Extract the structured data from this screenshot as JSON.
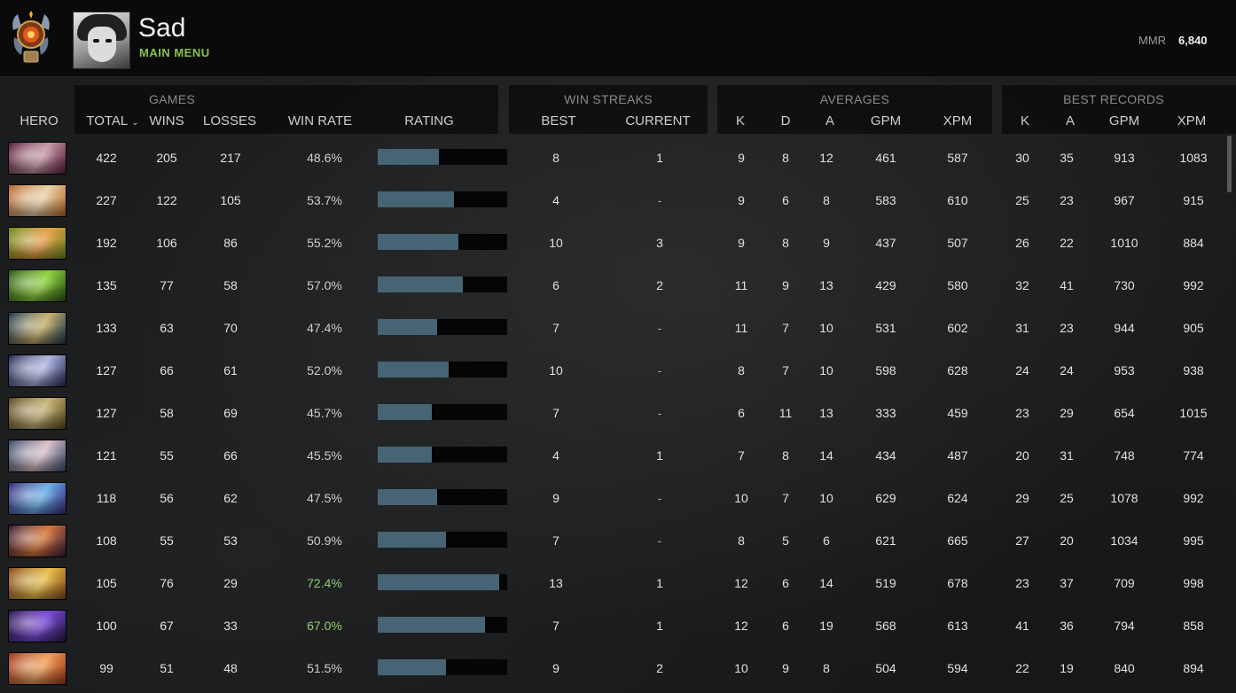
{
  "header": {
    "player_name": "Sad",
    "main_menu_label": "MAIN MENU",
    "mmr_label": "MMR",
    "mmr_value": "6,840",
    "medal_icon": "rank-medal-icon"
  },
  "groups": {
    "games": "GAMES",
    "win_streaks": "WIN STREAKS",
    "averages": "AVERAGES",
    "best_records": "BEST RECORDS"
  },
  "columns": {
    "hero": "HERO",
    "total": "TOTAL",
    "wins": "WINS",
    "losses": "LOSSES",
    "win_rate": "WIN RATE",
    "rating": "RATING",
    "streak_best": "BEST",
    "streak_current": "CURRENT",
    "avg_k": "K",
    "avg_d": "D",
    "avg_a": "A",
    "avg_gpm": "GPM",
    "avg_xpm": "XPM",
    "best_k": "K",
    "best_a": "A",
    "best_gpm": "GPM",
    "best_xpm": "XPM"
  },
  "colors": {
    "accent_green": "#83c24e",
    "rating_bar": "#466474",
    "good_winrate": "#8fce6e"
  },
  "rows": [
    {
      "hero_colors": [
        "#5a1e3c",
        "#c89aa8"
      ],
      "total": "422",
      "wins": "205",
      "losses": "217",
      "win_rate": "48.6%",
      "rating": 0.47,
      "best": "8",
      "current": "1",
      "k": "9",
      "d": "8",
      "a": "12",
      "gpm": "461",
      "xpm": "587",
      "bk": "30",
      "ba": "35",
      "bgpm": "913",
      "bxpm": "1083"
    },
    {
      "hero_colors": [
        "#b8672a",
        "#e8d2a8"
      ],
      "total": "227",
      "wins": "122",
      "losses": "105",
      "win_rate": "53.7%",
      "rating": 0.59,
      "best": "4",
      "current": "-",
      "k": "9",
      "d": "6",
      "a": "8",
      "gpm": "583",
      "xpm": "610",
      "bk": "25",
      "ba": "23",
      "bgpm": "967",
      "bxpm": "915"
    },
    {
      "hero_colors": [
        "#6a8a1c",
        "#e8a04a"
      ],
      "total": "192",
      "wins": "106",
      "losses": "86",
      "win_rate": "55.2%",
      "rating": 0.62,
      "best": "10",
      "current": "3",
      "k": "9",
      "d": "8",
      "a": "9",
      "gpm": "437",
      "xpm": "507",
      "bk": "26",
      "ba": "22",
      "bgpm": "1010",
      "bxpm": "884"
    },
    {
      "hero_colors": [
        "#2e5a18",
        "#8ed23a"
      ],
      "total": "135",
      "wins": "77",
      "losses": "58",
      "win_rate": "57.0%",
      "rating": 0.66,
      "best": "6",
      "current": "2",
      "k": "11",
      "d": "9",
      "a": "13",
      "gpm": "429",
      "xpm": "580",
      "bk": "32",
      "ba": "41",
      "bgpm": "730",
      "bxpm": "992"
    },
    {
      "hero_colors": [
        "#1e3a52",
        "#c8b06a"
      ],
      "total": "133",
      "wins": "63",
      "losses": "70",
      "win_rate": "47.4%",
      "rating": 0.46,
      "best": "7",
      "current": "-",
      "k": "11",
      "d": "7",
      "a": "10",
      "gpm": "531",
      "xpm": "602",
      "bk": "31",
      "ba": "23",
      "bgpm": "944",
      "bxpm": "905"
    },
    {
      "hero_colors": [
        "#2a2a5a",
        "#b0b8e0"
      ],
      "total": "127",
      "wins": "66",
      "losses": "61",
      "win_rate": "52.0%",
      "rating": 0.55,
      "best": "10",
      "current": "-",
      "k": "8",
      "d": "7",
      "a": "10",
      "gpm": "598",
      "xpm": "628",
      "bk": "24",
      "ba": "24",
      "bgpm": "953",
      "bxpm": "938"
    },
    {
      "hero_colors": [
        "#5a4a1e",
        "#c8b478"
      ],
      "total": "127",
      "wins": "58",
      "losses": "69",
      "win_rate": "45.7%",
      "rating": 0.42,
      "best": "7",
      "current": "-",
      "k": "6",
      "d": "11",
      "a": "13",
      "gpm": "333",
      "xpm": "459",
      "bk": "23",
      "ba": "29",
      "bgpm": "654",
      "bxpm": "1015"
    },
    {
      "hero_colors": [
        "#3a4a6a",
        "#d8c0c8"
      ],
      "total": "121",
      "wins": "55",
      "losses": "66",
      "win_rate": "45.5%",
      "rating": 0.42,
      "best": "4",
      "current": "1",
      "k": "7",
      "d": "8",
      "a": "14",
      "gpm": "434",
      "xpm": "487",
      "bk": "20",
      "ba": "31",
      "bgpm": "748",
      "bxpm": "774"
    },
    {
      "hero_colors": [
        "#3a2a7a",
        "#6ab0e8"
      ],
      "total": "118",
      "wins": "56",
      "losses": "62",
      "win_rate": "47.5%",
      "rating": 0.46,
      "best": "9",
      "current": "-",
      "k": "10",
      "d": "7",
      "a": "10",
      "gpm": "629",
      "xpm": "624",
      "bk": "29",
      "ba": "25",
      "bgpm": "1078",
      "bxpm": "992"
    },
    {
      "hero_colors": [
        "#3a1e3a",
        "#d8783a"
      ],
      "total": "108",
      "wins": "55",
      "losses": "53",
      "win_rate": "50.9%",
      "rating": 0.53,
      "best": "7",
      "current": "-",
      "k": "8",
      "d": "5",
      "a": "6",
      "gpm": "621",
      "xpm": "665",
      "bk": "27",
      "ba": "20",
      "bgpm": "1034",
      "bxpm": "995"
    },
    {
      "hero_colors": [
        "#8a4a1a",
        "#e8c04a"
      ],
      "total": "105",
      "wins": "76",
      "losses": "29",
      "win_rate": "72.4%",
      "rating": 0.94,
      "best": "13",
      "current": "1",
      "k": "12",
      "d": "6",
      "a": "14",
      "gpm": "519",
      "xpm": "678",
      "bk": "23",
      "ba": "37",
      "bgpm": "709",
      "bxpm": "998"
    },
    {
      "hero_colors": [
        "#2a1a4a",
        "#7a4ad8"
      ],
      "total": "100",
      "wins": "67",
      "losses": "33",
      "win_rate": "67.0%",
      "rating": 0.83,
      "best": "7",
      "current": "1",
      "k": "12",
      "d": "6",
      "a": "19",
      "gpm": "568",
      "xpm": "613",
      "bk": "41",
      "ba": "36",
      "bgpm": "794",
      "bxpm": "858"
    },
    {
      "hero_colors": [
        "#a0381a",
        "#f0a05a"
      ],
      "total": "99",
      "wins": "51",
      "losses": "48",
      "win_rate": "51.5%",
      "rating": 0.53,
      "best": "9",
      "current": "2",
      "k": "10",
      "d": "9",
      "a": "8",
      "gpm": "504",
      "xpm": "594",
      "bk": "22",
      "ba": "19",
      "bgpm": "840",
      "bxpm": "894"
    }
  ]
}
